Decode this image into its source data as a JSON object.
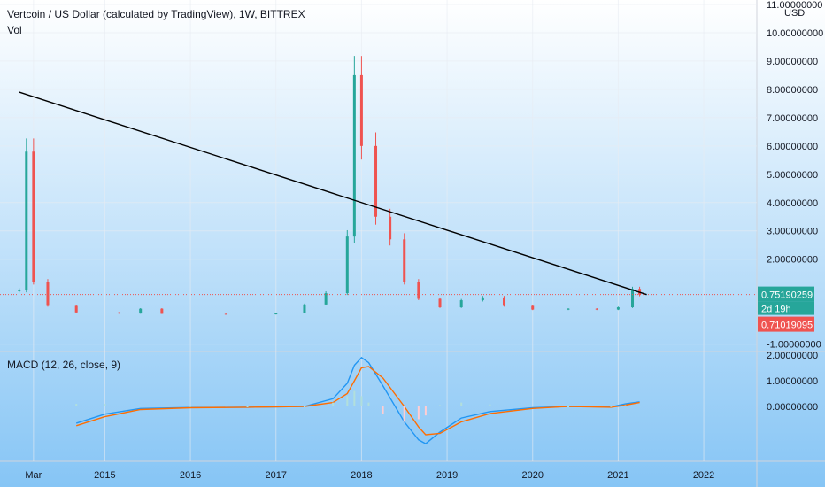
{
  "header": {
    "title": "Vertcoin / US Dollar (calculated by TradingView), 1W, BITTREX",
    "volume_label": "Vol",
    "macd_label": "MACD (12, 26, close, 9)",
    "currency": "USD"
  },
  "colors": {
    "up": "#26a69a",
    "down": "#ef5350",
    "price_line": "#ef5350",
    "trendline": "#000000",
    "macd_line": "#2196f3",
    "signal_line": "#ff6d00",
    "background_top": "#ffffff",
    "background_bottom": "#86c5f5"
  },
  "price_badges": {
    "last_price": "0.75190259",
    "countdown": "2d 19h",
    "prev_price": "0.71019095"
  },
  "chart_data": [
    {
      "type": "candlestick",
      "title": "Vertcoin / US Dollar (calculated by TradingView), 1W, BITTREX",
      "x_ticks": [
        "Mar",
        "2015",
        "2016",
        "2017",
        "2018",
        "2019",
        "2020",
        "2021",
        "2022"
      ],
      "y_ticks": [
        "11.00000000",
        "10.00000000",
        "9.00000000",
        "8.00000000",
        "7.00000000",
        "6.00000000",
        "5.00000000",
        "4.00000000",
        "3.00000000",
        "2.00000000",
        "-1.00000000"
      ],
      "ylim": [
        -1.2,
        11
      ],
      "last_price": 0.7519,
      "trendline": {
        "start": [
          "2014-01",
          7.9
        ],
        "end": [
          "2021-05",
          0.75
        ]
      },
      "series": [
        {
          "x": "2014-01",
          "y": 0.9
        },
        {
          "x": "2014-02",
          "y": 5.8
        },
        {
          "x": "2014-03",
          "y": 1.2
        },
        {
          "x": "2014-05",
          "y": 0.35
        },
        {
          "x": "2014-09",
          "y": 0.12
        },
        {
          "x": "2015-03",
          "y": 0.08
        },
        {
          "x": "2015-06",
          "y": 0.25
        },
        {
          "x": "2015-09",
          "y": 0.07
        },
        {
          "x": "2016-06",
          "y": 0.05
        },
        {
          "x": "2017-01",
          "y": 0.1
        },
        {
          "x": "2017-05",
          "y": 0.4
        },
        {
          "x": "2017-08",
          "y": 0.8
        },
        {
          "x": "2017-11",
          "y": 2.8
        },
        {
          "x": "2017-12",
          "y": 8.5
        },
        {
          "x": "2018-01",
          "y": 6.0
        },
        {
          "x": "2018-03",
          "y": 3.5
        },
        {
          "x": "2018-05",
          "y": 2.7
        },
        {
          "x": "2018-07",
          "y": 1.2
        },
        {
          "x": "2018-09",
          "y": 0.6
        },
        {
          "x": "2018-12",
          "y": 0.3
        },
        {
          "x": "2019-03",
          "y": 0.55
        },
        {
          "x": "2019-06",
          "y": 0.65
        },
        {
          "x": "2019-09",
          "y": 0.35
        },
        {
          "x": "2020-01",
          "y": 0.22
        },
        {
          "x": "2020-06",
          "y": 0.25
        },
        {
          "x": "2020-10",
          "y": 0.22
        },
        {
          "x": "2021-01",
          "y": 0.3
        },
        {
          "x": "2021-03",
          "y": 0.95
        },
        {
          "x": "2021-04",
          "y": 0.75
        }
      ]
    },
    {
      "type": "line",
      "title": "MACD (12, 26, close, 9)",
      "y_ticks": [
        "2.00000000",
        "1.00000000",
        "0.00000000"
      ],
      "ylim": [
        -2.1,
        2.1
      ],
      "series": [
        {
          "name": "MACD",
          "points": [
            [
              "2014-09",
              -0.65
            ],
            [
              "2015-01",
              -0.3
            ],
            [
              "2015-06",
              -0.08
            ],
            [
              "2016-01",
              -0.04
            ],
            [
              "2016-09",
              -0.03
            ],
            [
              "2017-05",
              0.0
            ],
            [
              "2017-09",
              0.3
            ],
            [
              "2017-11",
              0.9
            ],
            [
              "2017-12",
              1.6
            ],
            [
              "2018-01",
              1.9
            ],
            [
              "2018-02",
              1.7
            ],
            [
              "2018-04",
              0.8
            ],
            [
              "2018-07",
              -0.6
            ],
            [
              "2018-09",
              -1.3
            ],
            [
              "2018-10",
              -1.45
            ],
            [
              "2018-12",
              -1.0
            ],
            [
              "2019-03",
              -0.45
            ],
            [
              "2019-07",
              -0.2
            ],
            [
              "2020-01",
              -0.05
            ],
            [
              "2020-06",
              0.0
            ],
            [
              "2020-12",
              -0.02
            ],
            [
              "2021-02",
              0.1
            ],
            [
              "2021-04",
              0.18
            ]
          ]
        },
        {
          "name": "Signal",
          "points": [
            [
              "2014-09",
              -0.75
            ],
            [
              "2015-01",
              -0.4
            ],
            [
              "2015-06",
              -0.12
            ],
            [
              "2016-01",
              -0.05
            ],
            [
              "2016-09",
              -0.03
            ],
            [
              "2017-05",
              0.0
            ],
            [
              "2017-09",
              0.15
            ],
            [
              "2017-11",
              0.5
            ],
            [
              "2017-12",
              1.0
            ],
            [
              "2018-01",
              1.5
            ],
            [
              "2018-02",
              1.55
            ],
            [
              "2018-04",
              1.1
            ],
            [
              "2018-07",
              0.0
            ],
            [
              "2018-09",
              -0.8
            ],
            [
              "2018-10",
              -1.1
            ],
            [
              "2018-12",
              -1.05
            ],
            [
              "2019-03",
              -0.6
            ],
            [
              "2019-07",
              -0.28
            ],
            [
              "2020-01",
              -0.08
            ],
            [
              "2020-06",
              0.0
            ],
            [
              "2020-12",
              -0.03
            ],
            [
              "2021-02",
              0.05
            ],
            [
              "2021-04",
              0.15
            ]
          ]
        }
      ]
    }
  ]
}
